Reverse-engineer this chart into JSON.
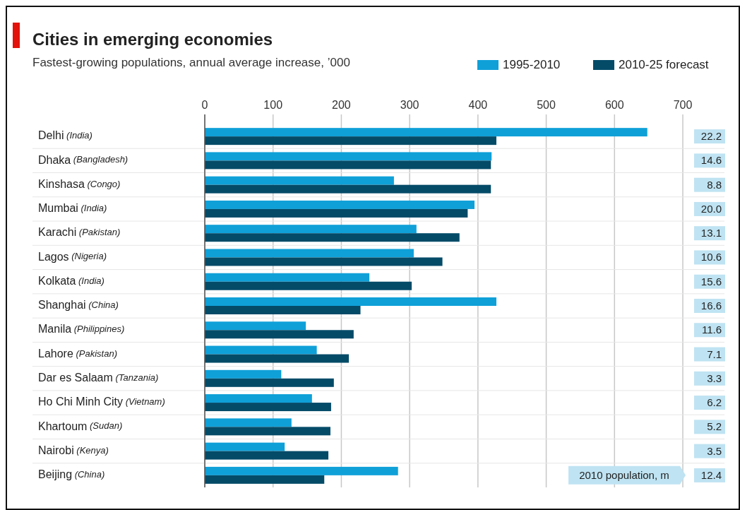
{
  "chart_data": {
    "type": "bar",
    "orientation": "horizontal",
    "title": "Cities in emerging economies",
    "subtitle": "Fastest-growing populations, annual average increase, ’000",
    "categories": [
      "Delhi (India)",
      "Dhaka (Bangladesh)",
      "Kinshasa (Congo)",
      "Mumbai (India)",
      "Karachi (Pakistan)",
      "Lagos (Nigeria)",
      "Kolkata (India)",
      "Shanghai (China)",
      "Manila (Philippines)",
      "Lahore (Pakistan)",
      "Dar es Salaam (Tanzania)",
      "Ho Chi Minh City (Vietnam)",
      "Khartoum (Sudan)",
      "Nairobi (Kenya)",
      "Beijing (China)"
    ],
    "series": [
      {
        "name": "1995-2010",
        "color": "#0fa0d8",
        "values": [
          648,
          420,
          277,
          395,
          310,
          306,
          241,
          427,
          148,
          164,
          112,
          157,
          127,
          117,
          283
        ]
      },
      {
        "name": "2010-25 forecast",
        "color": "#044b68",
        "values": [
          427,
          419,
          419,
          385,
          373,
          348,
          303,
          228,
          218,
          211,
          189,
          185,
          184,
          181,
          175
        ]
      }
    ],
    "xlim": [
      0,
      700
    ],
    "xticks": [
      0,
      100,
      200,
      300,
      400,
      500,
      600,
      700
    ],
    "grid": "x",
    "legend": "top right",
    "annotations": [
      "22.2",
      "14.6",
      "8.8",
      "20.0",
      "13.1",
      "10.6",
      "15.6",
      "16.6",
      "11.6",
      "7.1",
      "3.3",
      "6.2",
      "5.2",
      "3.5",
      "12.4",
      "2010 population, m"
    ]
  }
}
